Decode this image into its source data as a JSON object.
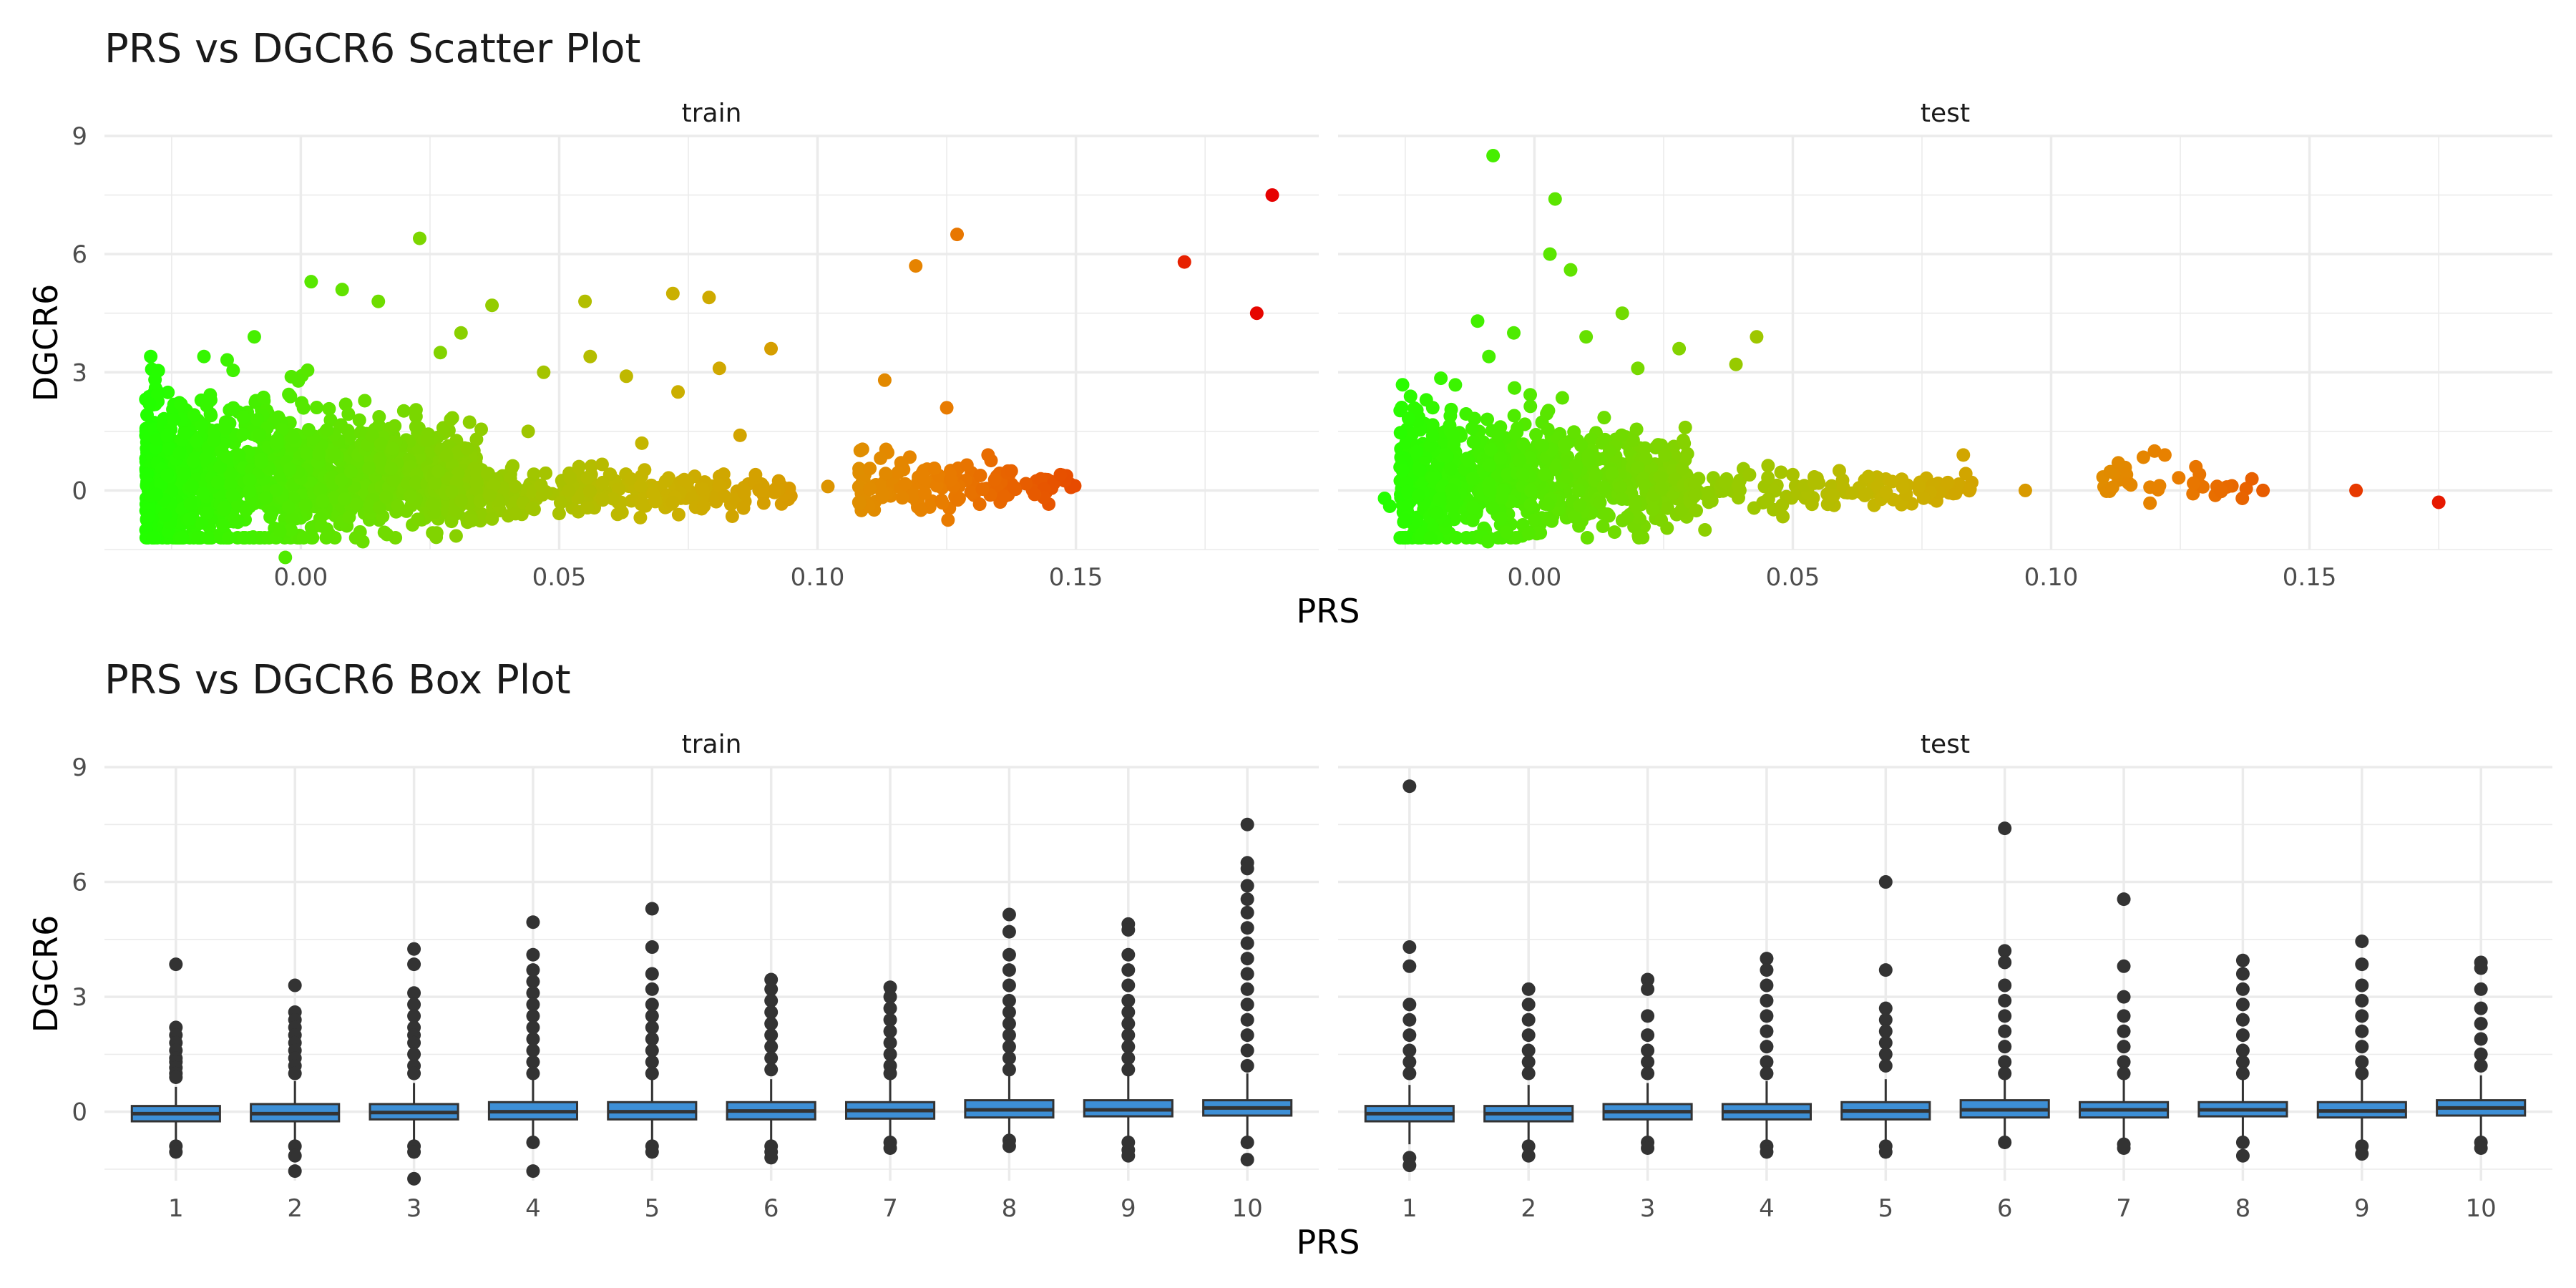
{
  "titles": {
    "scatter": "PRS vs DGCR6 Scatter Plot",
    "box": "PRS vs DGCR6 Box Plot"
  },
  "colors": {
    "low": "#22ff00",
    "mid": "#c8b400",
    "high": "#e60000",
    "box_fill": "#3d8fd6",
    "box_line": "#333333",
    "outlier": "#333333",
    "grid": "#ebebeb"
  },
  "chart_data": [
    {
      "type": "scatter",
      "title": "PRS vs DGCR6 Scatter Plot",
      "xlabel": "PRS",
      "ylabel": "DGCR6",
      "facets": [
        "train",
        "test"
      ],
      "xlim": [
        -0.038,
        0.197
      ],
      "ylim": [
        -1.5,
        9.0
      ],
      "x_ticks": [
        0.0,
        0.05,
        0.1,
        0.15
      ],
      "x_tick_labels": [
        "0.00",
        "0.05",
        "0.10",
        "0.15"
      ],
      "y_ticks": [
        0,
        3,
        6,
        9
      ],
      "color_by": "PRS (green low → orange → red high)",
      "grid": true,
      "series": [
        {
          "facet": "train",
          "points": [
            [
              0.185,
              4.5
            ],
            [
              0.188,
              7.5
            ],
            [
              0.171,
              5.8
            ],
            [
              0.127,
              6.5
            ],
            [
              0.119,
              5.7
            ],
            [
              0.113,
              2.8
            ],
            [
              0.125,
              2.1
            ],
            [
              0.023,
              6.4
            ],
            [
              0.072,
              5.0
            ],
            [
              0.079,
              4.9
            ],
            [
              0.055,
              4.8
            ],
            [
              0.031,
              4.0
            ],
            [
              0.037,
              4.7
            ],
            [
              -0.009,
              3.9
            ],
            [
              0.002,
              5.3
            ],
            [
              0.008,
              5.1
            ],
            [
              0.015,
              4.8
            ],
            [
              0.091,
              3.6
            ],
            [
              0.073,
              2.5
            ],
            [
              0.081,
              3.1
            ],
            [
              0.063,
              2.9
            ],
            [
              0.056,
              3.4
            ],
            [
              0.047,
              3.0
            ],
            [
              0.027,
              3.5
            ],
            [
              0.102,
              0.1
            ],
            [
              0.108,
              -0.3
            ],
            [
              0.147,
              0.4
            ],
            [
              0.142,
              -0.1
            ],
            [
              0.133,
              0.9
            ],
            [
              0.12,
              -0.5
            ],
            [
              0.085,
              1.4
            ],
            [
              0.088,
              0.4
            ],
            [
              0.078,
              -0.4
            ],
            [
              0.066,
              1.2
            ],
            [
              -0.028,
              -0.1
            ],
            [
              -0.003,
              -1.7
            ],
            [
              0.012,
              -1.3
            ],
            [
              0.004,
              -0.9
            ],
            [
              0.029,
              1.8
            ],
            [
              0.044,
              1.5
            ]
          ],
          "clusters": [
            {
              "x_range": [
                -0.03,
                0.035
              ],
              "y_mean": 0.4,
              "y_sd": 1.1,
              "n": 1400
            },
            {
              "x_range": [
                0.025,
                0.095
              ],
              "y_mean": 0.0,
              "y_sd": 0.35,
              "n": 320
            },
            {
              "x_range": [
                0.108,
                0.15
              ],
              "y_mean": 0.1,
              "y_sd": 0.4,
              "n": 150
            }
          ]
        },
        {
          "facet": "test",
          "points": [
            [
              -0.008,
              8.5
            ],
            [
              0.004,
              7.4
            ],
            [
              0.003,
              6.0
            ],
            [
              0.007,
              5.6
            ],
            [
              -0.011,
              4.3
            ],
            [
              0.017,
              4.5
            ],
            [
              0.01,
              3.9
            ],
            [
              0.028,
              3.6
            ],
            [
              0.043,
              3.9
            ],
            [
              0.039,
              3.2
            ],
            [
              -0.029,
              -0.2
            ],
            [
              -0.028,
              -0.4
            ],
            [
              -0.009,
              -1.3
            ],
            [
              0.095,
              0.0
            ],
            [
              0.159,
              0.0
            ],
            [
              0.175,
              -0.3
            ],
            [
              0.137,
              -0.2
            ],
            [
              0.141,
              0.0
            ],
            [
              0.12,
              1.0
            ],
            [
              0.122,
              0.9
            ],
            [
              0.113,
              0.7
            ],
            [
              0.128,
              0.6
            ],
            [
              0.083,
              0.9
            ],
            [
              0.08,
              0.2
            ],
            [
              0.064,
              -0.1
            ],
            [
              0.059,
              0.5
            ],
            [
              0.05,
              0.4
            ],
            [
              0.033,
              -1.0
            ],
            [
              0.02,
              3.1
            ],
            [
              -0.004,
              4.0
            ]
          ],
          "clusters": [
            {
              "x_range": [
                -0.026,
                0.03
              ],
              "y_mean": 0.3,
              "y_sd": 1.0,
              "n": 800
            },
            {
              "x_range": [
                0.03,
                0.085
              ],
              "y_mean": 0.0,
              "y_sd": 0.3,
              "n": 130
            },
            {
              "x_range": [
                0.11,
                0.14
              ],
              "y_mean": 0.2,
              "y_sd": 0.35,
              "n": 30
            }
          ]
        }
      ]
    },
    {
      "type": "box",
      "title": "PRS vs DGCR6 Box Plot",
      "xlabel": "PRS",
      "ylabel": "DGCR6",
      "facets": [
        "train",
        "test"
      ],
      "categories": [
        "1",
        "2",
        "3",
        "4",
        "5",
        "6",
        "7",
        "8",
        "9",
        "10"
      ],
      "ylim": [
        -1.8,
        9.0
      ],
      "y_ticks": [
        0,
        3,
        6,
        9
      ],
      "grid": true,
      "series": [
        {
          "facet": "train",
          "boxes": [
            {
              "q1": -0.25,
              "median": -0.05,
              "q3": 0.15,
              "lo": -0.85,
              "hi": 0.65,
              "outliers_low": [
                -0.9,
                -1.05
              ],
              "outliers_high": [
                3.85,
                2.2,
                2.0,
                1.8,
                1.6,
                1.4,
                1.3,
                1.15,
                1.0,
                0.9
              ]
            },
            {
              "q1": -0.25,
              "median": -0.05,
              "q3": 0.2,
              "lo": -0.85,
              "hi": 0.8,
              "outliers_low": [
                -0.9,
                -1.15,
                -1.55
              ],
              "outliers_high": [
                3.3,
                2.6,
                2.4,
                2.2,
                2.0,
                1.8,
                1.6,
                1.4,
                1.2,
                1.0
              ]
            },
            {
              "q1": -0.2,
              "median": -0.02,
              "q3": 0.2,
              "lo": -0.75,
              "hi": 0.75,
              "outliers_low": [
                -0.9,
                -1.05,
                -1.75
              ],
              "outliers_high": [
                4.25,
                3.85,
                3.1,
                2.8,
                2.5,
                2.2,
                2.0,
                1.8,
                1.5,
                1.2,
                1.0
              ]
            },
            {
              "q1": -0.2,
              "median": 0.0,
              "q3": 0.25,
              "lo": -0.75,
              "hi": 0.85,
              "outliers_low": [
                -0.8,
                -1.55
              ],
              "outliers_high": [
                4.95,
                4.1,
                3.7,
                3.4,
                3.1,
                2.8,
                2.5,
                2.2,
                1.9,
                1.6,
                1.3,
                1.0
              ]
            },
            {
              "q1": -0.2,
              "median": 0.0,
              "q3": 0.25,
              "lo": -0.75,
              "hi": 0.85,
              "outliers_low": [
                -0.9,
                -1.05
              ],
              "outliers_high": [
                5.3,
                4.3,
                3.6,
                3.2,
                2.8,
                2.5,
                2.2,
                1.9,
                1.6,
                1.3,
                1.0
              ]
            },
            {
              "q1": -0.2,
              "median": 0.02,
              "q3": 0.25,
              "lo": -0.75,
              "hi": 0.85,
              "outliers_low": [
                -0.9,
                -1.05,
                -1.2
              ],
              "outliers_high": [
                3.45,
                3.2,
                2.9,
                2.6,
                2.3,
                2.0,
                1.7,
                1.4,
                1.1
              ]
            },
            {
              "q1": -0.18,
              "median": 0.03,
              "q3": 0.25,
              "lo": -0.7,
              "hi": 0.85,
              "outliers_low": [
                -0.8,
                -0.95
              ],
              "outliers_high": [
                3.25,
                3.0,
                2.7,
                2.4,
                2.1,
                1.8,
                1.5,
                1.2,
                1.0
              ]
            },
            {
              "q1": -0.15,
              "median": 0.05,
              "q3": 0.3,
              "lo": -0.7,
              "hi": 0.95,
              "outliers_low": [
                -0.75,
                -0.9
              ],
              "outliers_high": [
                5.15,
                4.7,
                4.1,
                3.7,
                3.3,
                2.9,
                2.6,
                2.3,
                2.0,
                1.7,
                1.4,
                1.1
              ]
            },
            {
              "q1": -0.12,
              "median": 0.05,
              "q3": 0.3,
              "lo": -0.7,
              "hi": 0.95,
              "outliers_low": [
                -0.8,
                -1.0,
                -1.15
              ],
              "outliers_high": [
                4.9,
                4.75,
                4.1,
                3.7,
                3.3,
                2.9,
                2.6,
                2.3,
                2.0,
                1.7,
                1.4,
                1.1
              ]
            },
            {
              "q1": -0.1,
              "median": 0.1,
              "q3": 0.3,
              "lo": -0.65,
              "hi": 1.0,
              "outliers_low": [
                -0.8,
                -1.25
              ],
              "outliers_high": [
                7.5,
                6.5,
                6.35,
                5.9,
                5.55,
                5.2,
                4.8,
                4.4,
                4.0,
                3.6,
                3.2,
                2.8,
                2.4,
                2.0,
                1.6,
                1.2
              ]
            }
          ]
        },
        {
          "facet": "test",
          "boxes": [
            {
              "q1": -0.25,
              "median": -0.05,
              "q3": 0.15,
              "lo": -0.85,
              "hi": 0.7,
              "outliers_low": [
                -1.2,
                -1.4
              ],
              "outliers_high": [
                8.5,
                4.3,
                3.8,
                2.8,
                2.4,
                2.0,
                1.6,
                1.3,
                1.0
              ]
            },
            {
              "q1": -0.25,
              "median": -0.05,
              "q3": 0.15,
              "lo": -0.85,
              "hi": 0.7,
              "outliers_low": [
                -0.9,
                -1.15
              ],
              "outliers_high": [
                3.2,
                2.8,
                2.4,
                2.0,
                1.6,
                1.3,
                1.0
              ]
            },
            {
              "q1": -0.2,
              "median": 0.0,
              "q3": 0.2,
              "lo": -0.75,
              "hi": 0.75,
              "outliers_low": [
                -0.8,
                -0.95
              ],
              "outliers_high": [
                3.45,
                3.2,
                2.5,
                2.0,
                1.6,
                1.3,
                1.0
              ]
            },
            {
              "q1": -0.2,
              "median": 0.0,
              "q3": 0.2,
              "lo": -0.75,
              "hi": 0.8,
              "outliers_low": [
                -0.9,
                -1.05
              ],
              "outliers_high": [
                4.0,
                3.7,
                3.3,
                2.9,
                2.5,
                2.1,
                1.7,
                1.3,
                1.0
              ]
            },
            {
              "q1": -0.2,
              "median": 0.02,
              "q3": 0.25,
              "lo": -0.75,
              "hi": 0.85,
              "outliers_low": [
                -0.9,
                -1.05
              ],
              "outliers_high": [
                6.0,
                3.7,
                2.7,
                2.4,
                2.1,
                1.8,
                1.5,
                1.2
              ]
            },
            {
              "q1": -0.15,
              "median": 0.05,
              "q3": 0.3,
              "lo": -0.7,
              "hi": 0.95,
              "outliers_low": [
                -0.8
              ],
              "outliers_high": [
                7.4,
                4.2,
                3.9,
                3.3,
                2.9,
                2.5,
                2.1,
                1.7,
                1.3,
                1.0
              ]
            },
            {
              "q1": -0.15,
              "median": 0.05,
              "q3": 0.25,
              "lo": -0.7,
              "hi": 0.85,
              "outliers_low": [
                -0.85,
                -0.95
              ],
              "outliers_high": [
                5.55,
                3.8,
                3.0,
                2.5,
                2.1,
                1.7,
                1.3,
                1.0
              ]
            },
            {
              "q1": -0.12,
              "median": 0.05,
              "q3": 0.25,
              "lo": -0.7,
              "hi": 0.85,
              "outliers_low": [
                -0.8,
                -1.15
              ],
              "outliers_high": [
                3.95,
                3.6,
                3.2,
                2.8,
                2.4,
                2.0,
                1.6,
                1.3,
                1.0
              ]
            },
            {
              "q1": -0.15,
              "median": 0.02,
              "q3": 0.25,
              "lo": -0.75,
              "hi": 0.85,
              "outliers_low": [
                -0.9,
                -1.1
              ],
              "outliers_high": [
                4.45,
                3.85,
                3.3,
                2.9,
                2.5,
                2.1,
                1.7,
                1.3,
                1.0
              ]
            },
            {
              "q1": -0.1,
              "median": 0.1,
              "q3": 0.3,
              "lo": -0.65,
              "hi": 0.95,
              "outliers_low": [
                -0.8,
                -0.95
              ],
              "outliers_high": [
                3.9,
                3.75,
                3.2,
                2.7,
                2.3,
                1.9,
                1.5,
                1.2
              ]
            }
          ]
        }
      ]
    }
  ]
}
